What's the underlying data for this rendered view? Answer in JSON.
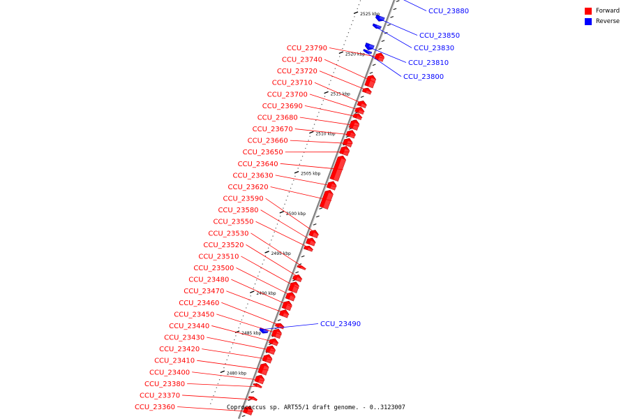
{
  "colors": {
    "forward": "#ff0000",
    "forward_dark": "#b80000",
    "forward_light": "#ff6a6a",
    "reverse": "#0000ff",
    "reverse_dark": "#0000a8",
    "reverse_light": "#6a6aff",
    "backbone": "#7f7f7f",
    "ticks": "#000000"
  },
  "legend": {
    "items": [
      {
        "label": "Forward",
        "color": "#ff0000"
      },
      {
        "label": "Reverse",
        "color": "#0000ff"
      }
    ]
  },
  "caption": "Coprococcus sp. ART55/1 draft genome. - 0..3123007",
  "axis": {
    "unit": "kbp",
    "ticks": [
      {
        "kbp": 2480,
        "label": "2480 kbp"
      },
      {
        "kbp": 2485,
        "label": "2485 kbp"
      },
      {
        "kbp": 2490,
        "label": "2490 kbp"
      },
      {
        "kbp": 2495,
        "label": "2495 kbp"
      },
      {
        "kbp": 2500,
        "label": "2500 kbp"
      },
      {
        "kbp": 2505,
        "label": "2505 kbp"
      },
      {
        "kbp": 2510,
        "label": "2510 kbp"
      },
      {
        "kbp": 2515,
        "label": "2515 kbp"
      },
      {
        "kbp": 2520,
        "label": "2520 kbp"
      },
      {
        "kbp": 2525,
        "label": "2525 kbp"
      }
    ]
  },
  "forward_genes": [
    {
      "name": "CCU_23790",
      "start_kbp": 2520.7,
      "end_kbp": 2521.6
    },
    {
      "name": "CCU_23740",
      "start_kbp": 2517.4,
      "end_kbp": 2518.8
    },
    {
      "name": "CCU_23720",
      "start_kbp": 2516.6,
      "end_kbp": 2517.2
    },
    {
      "name": "CCU_23710",
      "start_kbp": 2514.9,
      "end_kbp": 2515.6
    },
    {
      "name": "CCU_23700",
      "start_kbp": 2514.1,
      "end_kbp": 2514.8
    },
    {
      "name": "CCU_23690",
      "start_kbp": 2513.4,
      "end_kbp": 2514.0
    },
    {
      "name": "CCU_23680",
      "start_kbp": 2512.1,
      "end_kbp": 2513.2
    },
    {
      "name": "CCU_23670",
      "start_kbp": 2511.1,
      "end_kbp": 2511.9
    },
    {
      "name": "CCU_23660",
      "start_kbp": 2510.0,
      "end_kbp": 2510.9
    },
    {
      "name": "CCU_23650",
      "start_kbp": 2508.9,
      "end_kbp": 2509.9
    },
    {
      "name": "CCU_23640",
      "start_kbp": 2505.7,
      "end_kbp": 2508.7
    },
    {
      "name": "CCU_23630",
      "start_kbp": 2504.6,
      "end_kbp": 2505.5
    },
    {
      "name": "CCU_23620",
      "start_kbp": 2502.2,
      "end_kbp": 2504.4
    },
    {
      "name": "CCU_23590",
      "start_kbp": 2498.6,
      "end_kbp": 2499.4
    },
    {
      "name": "CCU_23580",
      "start_kbp": 2497.6,
      "end_kbp": 2498.4
    },
    {
      "name": "CCU_23550",
      "start_kbp": 2496.9,
      "end_kbp": 2497.4
    },
    {
      "name": "CCU_23530",
      "start_kbp": 2494.6,
      "end_kbp": 2494.9
    },
    {
      "name": "CCU_23520",
      "start_kbp": 2493.1,
      "end_kbp": 2493.8
    },
    {
      "name": "CCU_23510",
      "start_kbp": 2491.7,
      "end_kbp": 2492.9
    },
    {
      "name": "CCU_23500",
      "start_kbp": 2490.7,
      "end_kbp": 2491.6
    },
    {
      "name": "CCU_23480",
      "start_kbp": 2489.5,
      "end_kbp": 2490.5
    },
    {
      "name": "CCU_23470",
      "start_kbp": 2488.6,
      "end_kbp": 2489.4
    },
    {
      "name": "CCU_23460",
      "start_kbp": 2487.2,
      "end_kbp": 2487.7
    },
    {
      "name": "CCU_23450",
      "start_kbp": 2486.0,
      "end_kbp": 2487.0
    },
    {
      "name": "CCU_23440",
      "start_kbp": 2485.1,
      "end_kbp": 2485.8
    },
    {
      "name": "CCU_23430",
      "start_kbp": 2484.0,
      "end_kbp": 2484.9
    },
    {
      "name": "CCU_23420",
      "start_kbp": 2482.9,
      "end_kbp": 2483.8
    },
    {
      "name": "CCU_23410",
      "start_kbp": 2481.4,
      "end_kbp": 2482.7
    },
    {
      "name": "CCU_23400",
      "start_kbp": 2480.3,
      "end_kbp": 2481.2
    },
    {
      "name": "CCU_23380",
      "start_kbp": 2479.8,
      "end_kbp": 2480.1
    },
    {
      "name": "CCU_23370",
      "start_kbp": 2478.2,
      "end_kbp": 2478.5
    },
    {
      "name": "CCU_23360",
      "start_kbp": 2476.4,
      "end_kbp": 2477.3
    }
  ],
  "reverse_genes": [
    {
      "name": "CCU_23880",
      "start_kbp": 2528.3,
      "end_kbp": 2528.9
    },
    {
      "name": "CCU_23850",
      "start_kbp": 2525.0,
      "end_kbp": 2525.6
    },
    {
      "name": "CCU_23830",
      "start_kbp": 2524.1,
      "end_kbp": 2524.5
    },
    {
      "name": "CCU_23810",
      "start_kbp": 2521.4,
      "end_kbp": 2522.1
    },
    {
      "name": "CCU_23800",
      "start_kbp": 2521.0,
      "end_kbp": 2521.3
    },
    {
      "name": "CCU_23490",
      "start_kbp": 2485.9,
      "end_kbp": 2486.4
    }
  ]
}
